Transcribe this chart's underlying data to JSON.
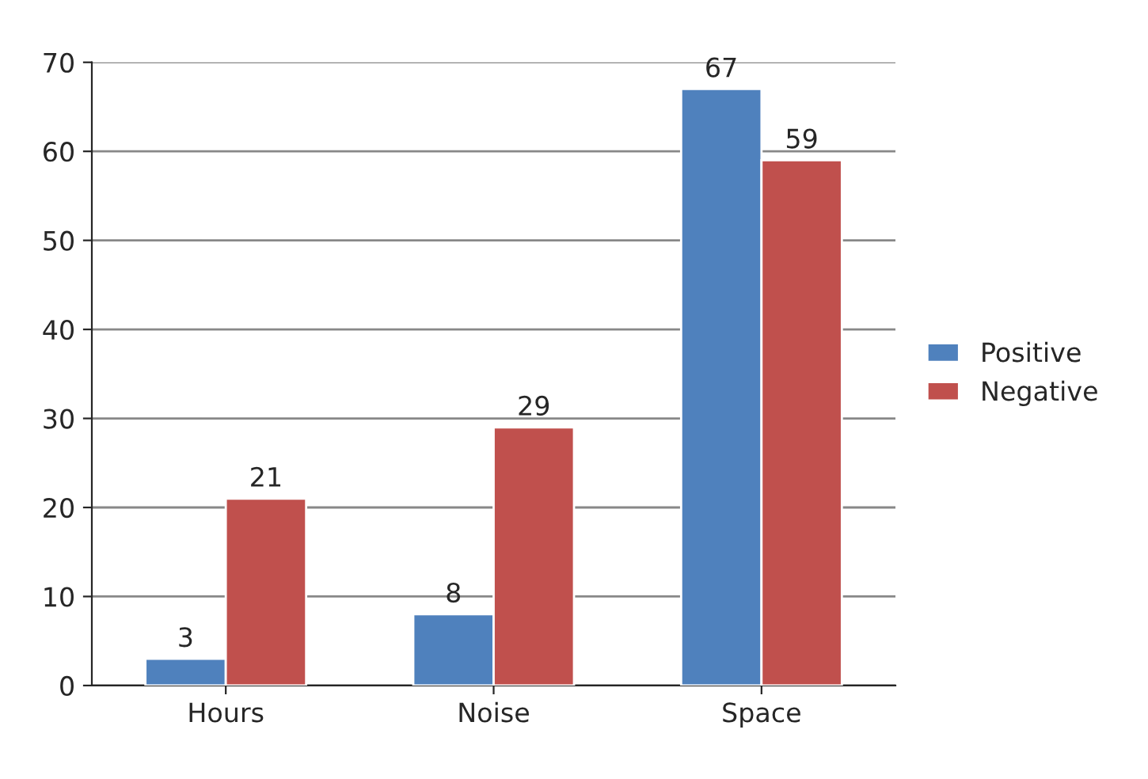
{
  "chart_data": {
    "type": "bar",
    "categories": [
      "Hours",
      "Noise",
      "Space"
    ],
    "series": [
      {
        "name": "Positive",
        "color": "#4f81bd",
        "values": [
          3,
          8,
          67
        ]
      },
      {
        "name": "Negative",
        "color": "#c0504d",
        "values": [
          21,
          29,
          59
        ]
      }
    ],
    "ylim": [
      0,
      70
    ],
    "yticks": [
      0,
      10,
      20,
      30,
      40,
      50,
      60,
      70
    ],
    "grid": "y",
    "legend": "right",
    "data_labels": true
  }
}
